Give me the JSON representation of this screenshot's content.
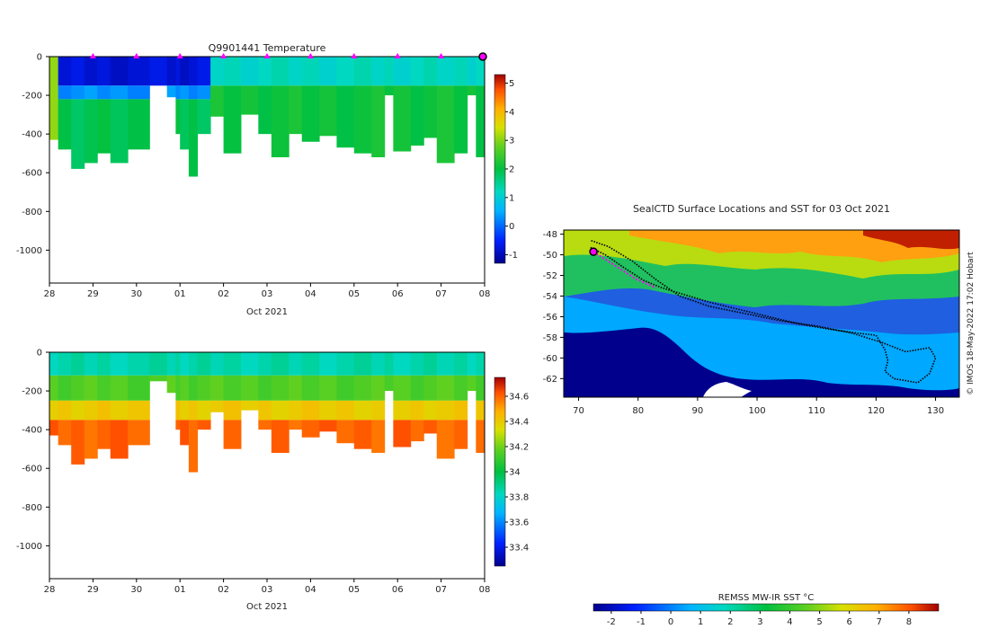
{
  "chart_data": [
    {
      "type": "heatmap",
      "title": "Q9901441  Temperature",
      "xlabel": "Oct 2021",
      "ylabel": "",
      "x_ticks": [
        "28",
        "29",
        "30",
        "01",
        "02",
        "03",
        "04",
        "05",
        "06",
        "07",
        "08"
      ],
      "x_range": [
        "2021-09-28",
        "2021-10-08"
      ],
      "y_ticks": [
        0,
        -200,
        -400,
        -600,
        -800,
        -1000
      ],
      "ylim": [
        -1170,
        0
      ],
      "colorbar": {
        "ticks": [
          5,
          4,
          3,
          2,
          1,
          0,
          -1
        ],
        "range": [
          -1.3,
          5.3
        ]
      },
      "profile_markers_days": [
        1,
        2,
        3,
        4,
        5,
        6,
        7,
        8,
        9
      ],
      "last_profile_marker": 10,
      "profiles": [
        {
          "x": 0.0,
          "depth": 430
        },
        {
          "x": 0.2,
          "depth": 480
        },
        {
          "x": 0.5,
          "depth": 580
        },
        {
          "x": 0.8,
          "depth": 550
        },
        {
          "x": 1.1,
          "depth": 500
        },
        {
          "x": 1.4,
          "depth": 550
        },
        {
          "x": 1.8,
          "depth": 480
        },
        {
          "x": 2.3,
          "depth": 150
        },
        {
          "x": 2.7,
          "depth": 210
        },
        {
          "x": 2.9,
          "depth": 400
        },
        {
          "x": 3.0,
          "depth": 480
        },
        {
          "x": 3.2,
          "depth": 620
        },
        {
          "x": 3.4,
          "depth": 400
        },
        {
          "x": 3.7,
          "depth": 310
        },
        {
          "x": 4.0,
          "depth": 500
        },
        {
          "x": 4.4,
          "depth": 300
        },
        {
          "x": 4.8,
          "depth": 400
        },
        {
          "x": 5.1,
          "depth": 520
        },
        {
          "x": 5.5,
          "depth": 400
        },
        {
          "x": 5.8,
          "depth": 440
        },
        {
          "x": 6.2,
          "depth": 410
        },
        {
          "x": 6.6,
          "depth": 470
        },
        {
          "x": 7.0,
          "depth": 500
        },
        {
          "x": 7.4,
          "depth": 520
        },
        {
          "x": 7.7,
          "depth": 200
        },
        {
          "x": 7.9,
          "depth": 490
        },
        {
          "x": 8.3,
          "depth": 460
        },
        {
          "x": 8.6,
          "depth": 420
        },
        {
          "x": 8.9,
          "depth": 550
        },
        {
          "x": 9.3,
          "depth": 500
        },
        {
          "x": 9.6,
          "depth": 200
        },
        {
          "x": 9.8,
          "depth": 520
        }
      ],
      "layers": [
        {
          "from_day": 0.0,
          "to_day": 0.2,
          "bands": [
            {
              "top": 0,
              "bottom": 430,
              "value": 3.2
            }
          ]
        },
        {
          "from_day": 0.2,
          "to_day": 3.6,
          "bands": [
            {
              "top": 0,
              "bottom": 150,
              "value": -0.8
            },
            {
              "top": 150,
              "bottom": 220,
              "value": 0.3
            },
            {
              "top": 220,
              "bottom": 9999,
              "value": 1.9
            }
          ]
        },
        {
          "from_day": 3.6,
          "to_day": 10.0,
          "bands": [
            {
              "top": 0,
              "bottom": 150,
              "value": 1.2
            },
            {
              "top": 150,
              "bottom": 9999,
              "value": 2.1
            }
          ]
        }
      ]
    },
    {
      "type": "heatmap",
      "title": "",
      "xlabel": "Oct 2021",
      "ylabel": "",
      "x_ticks": [
        "28",
        "29",
        "30",
        "01",
        "02",
        "03",
        "04",
        "05",
        "06",
        "07",
        "08"
      ],
      "x_range": [
        "2021-09-28",
        "2021-10-08"
      ],
      "y_ticks": [
        0,
        -200,
        -400,
        -600,
        -800,
        -1000
      ],
      "ylim": [
        -1170,
        0
      ],
      "colorbar": {
        "ticks": [
          34.6,
          34.4,
          34.2,
          34,
          33.8,
          33.6,
          33.4
        ],
        "range": [
          33.25,
          34.75
        ]
      },
      "profiles_same_as_temperature": true,
      "layers": [
        {
          "from_day": 0.0,
          "to_day": 10.0,
          "bands": [
            {
              "top": 0,
              "bottom": 120,
              "value": 33.85
            },
            {
              "top": 120,
              "bottom": 250,
              "value": 34.15
            },
            {
              "top": 250,
              "bottom": 350,
              "value": 34.4
            },
            {
              "top": 350,
              "bottom": 9999,
              "value": 34.6
            }
          ]
        }
      ]
    },
    {
      "type": "heatmap",
      "title": "SealCTD Surface Locations and SST for 03 Oct 2021",
      "xlabel": "",
      "ylabel": "",
      "x_ticks": [
        "70",
        "80",
        "90",
        "100",
        "110",
        "120",
        "130"
      ],
      "y_ticks": [
        "-48",
        "-50",
        "-52",
        "-54",
        "-56",
        "-58",
        "-60",
        "-62"
      ],
      "xlim": [
        67.5,
        134
      ],
      "ylim": [
        -63.8,
        -47.6
      ],
      "credit": "© IMOS 18-May-2022 17:02 Hobart",
      "colorbar": {
        "label": "REMSS MW-IR SST °C",
        "ticks": [
          "-2",
          "-1",
          "0",
          "1",
          "2",
          "3",
          "4",
          "5",
          "6",
          "7",
          "8"
        ],
        "range": [
          -2.6,
          9.0
        ]
      },
      "track": [
        [
          72.0,
          -49.3
        ],
        [
          74.5,
          -50.0
        ],
        [
          77.5,
          -51.2
        ],
        [
          81.0,
          -52.5
        ],
        [
          84.0,
          -53.2
        ],
        [
          88.0,
          -53.9
        ],
        [
          92.0,
          -54.6
        ],
        [
          97.0,
          -55.3
        ],
        [
          102.0,
          -56.0
        ],
        [
          107.0,
          -56.7
        ],
        [
          112.0,
          -57.2
        ],
        [
          117.0,
          -57.6
        ],
        [
          120.0,
          -57.8
        ],
        [
          121.5,
          -59.2
        ],
        [
          122.0,
          -60.3
        ],
        [
          121.5,
          -61.3
        ],
        [
          123.0,
          -62.0
        ],
        [
          127.0,
          -62.4
        ],
        [
          129.0,
          -61.5
        ],
        [
          130.0,
          -60.0
        ],
        [
          129.0,
          -59.0
        ]
      ],
      "track_return": [
        [
          129.0,
          -59.0
        ],
        [
          125.0,
          -59.4
        ],
        [
          121.0,
          -58.5
        ],
        [
          116.0,
          -57.6
        ],
        [
          110.0,
          -56.9
        ],
        [
          104.0,
          -56.4
        ],
        [
          98.0,
          -55.7
        ],
        [
          92.0,
          -55.0
        ],
        [
          87.0,
          -54.0
        ],
        [
          83.0,
          -52.4
        ],
        [
          79.0,
          -50.6
        ],
        [
          75.0,
          -49.2
        ],
        [
          72.0,
          -48.6
        ]
      ],
      "recent_track": [
        [
          72.5,
          -49.7
        ],
        [
          76.0,
          -51.0
        ],
        [
          79.5,
          -52.3
        ],
        [
          83.0,
          -53.2
        ]
      ],
      "current_position": [
        72.5,
        -49.7
      ]
    }
  ]
}
